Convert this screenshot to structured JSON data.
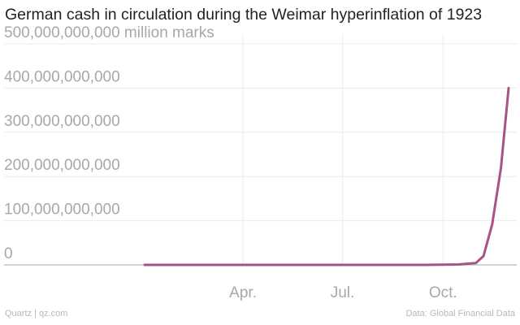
{
  "chart_data": {
    "type": "line",
    "title": "German cash in circulation during the Weimar hyperinflation of 1923",
    "ylabel": "million marks",
    "ylim": [
      0,
      500000000000
    ],
    "y_ticks": [
      0,
      100000000000,
      200000000000,
      300000000000,
      400000000000,
      500000000000
    ],
    "y_tick_labels": [
      "0",
      "100,000,000,000",
      "200,000,000,000",
      "300,000,000,000",
      "400,000,000,000",
      "500,000,000,000 million marks"
    ],
    "x_ticks": [
      "1923-04-01",
      "1923-07-01",
      "1923-10-01"
    ],
    "x_tick_labels": [
      "Apr.",
      "Jul.",
      "Oct."
    ],
    "xlim": [
      "1922-12-01",
      "1923-12-31"
    ],
    "grid": true,
    "series": [
      {
        "color": "#a9528a",
        "x": [
          "1923-01-01",
          "1923-02-01",
          "1923-03-01",
          "1923-04-01",
          "1923-05-01",
          "1923-06-01",
          "1923-07-01",
          "1923-08-01",
          "1923-09-01",
          "1923-09-15",
          "1923-10-01",
          "1923-10-15",
          "1923-10-31",
          "1923-11-07",
          "1923-11-15",
          "1923-11-23",
          "1923-11-30"
        ],
        "y": [
          0,
          0,
          0,
          0,
          0,
          0,
          0,
          0,
          0,
          0,
          300000000,
          1000000000,
          4000000000,
          20000000000,
          92000000000,
          220000000000,
          400000000000
        ]
      }
    ]
  },
  "footer": {
    "source_left": "Quartz | qz.com",
    "source_right": "Data: Global Financial Data"
  }
}
